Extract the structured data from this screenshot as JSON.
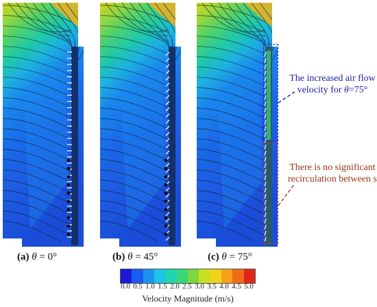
{
  "panels": [
    {
      "id": "a",
      "caption": {
        "letter": "(a)",
        "symbol": "θ",
        "value": "= 0°"
      },
      "angle_deg": 0
    },
    {
      "id": "b",
      "caption": {
        "letter": "(b)",
        "symbol": "θ",
        "value": "= 45°"
      },
      "angle_deg": 45
    },
    {
      "id": "c",
      "caption": {
        "letter": "(c)",
        "symbol": "θ",
        "value": "= 75°"
      },
      "angle_deg": 75
    }
  ],
  "annotations": {
    "upper": {
      "line1": "The increased air flow",
      "line2_prefix": "velocity for ",
      "line2_symbol": "θ",
      "line2_suffix": "=75°",
      "color": "#1c1ca8"
    },
    "lower": {
      "line1": "There is no significant",
      "line2": "recirculation between slats",
      "color": "#9a3316"
    }
  },
  "colorbar": {
    "label": "Velocity Magnitude (m/s)",
    "ticks": [
      "0.0",
      "0.5",
      "1.0",
      "1.5",
      "2.0",
      "2.5",
      "3.0",
      "3.5",
      "4.0",
      "4.5",
      "5.0"
    ],
    "colors": [
      "#1a1ad6",
      "#1a5cf0",
      "#1c93f2",
      "#1cc4e8",
      "#20d6b0",
      "#3ad67a",
      "#7cd840",
      "#c8e020",
      "#f2d21a",
      "#f5a21a",
      "#f06a18",
      "#e0261a"
    ]
  }
}
